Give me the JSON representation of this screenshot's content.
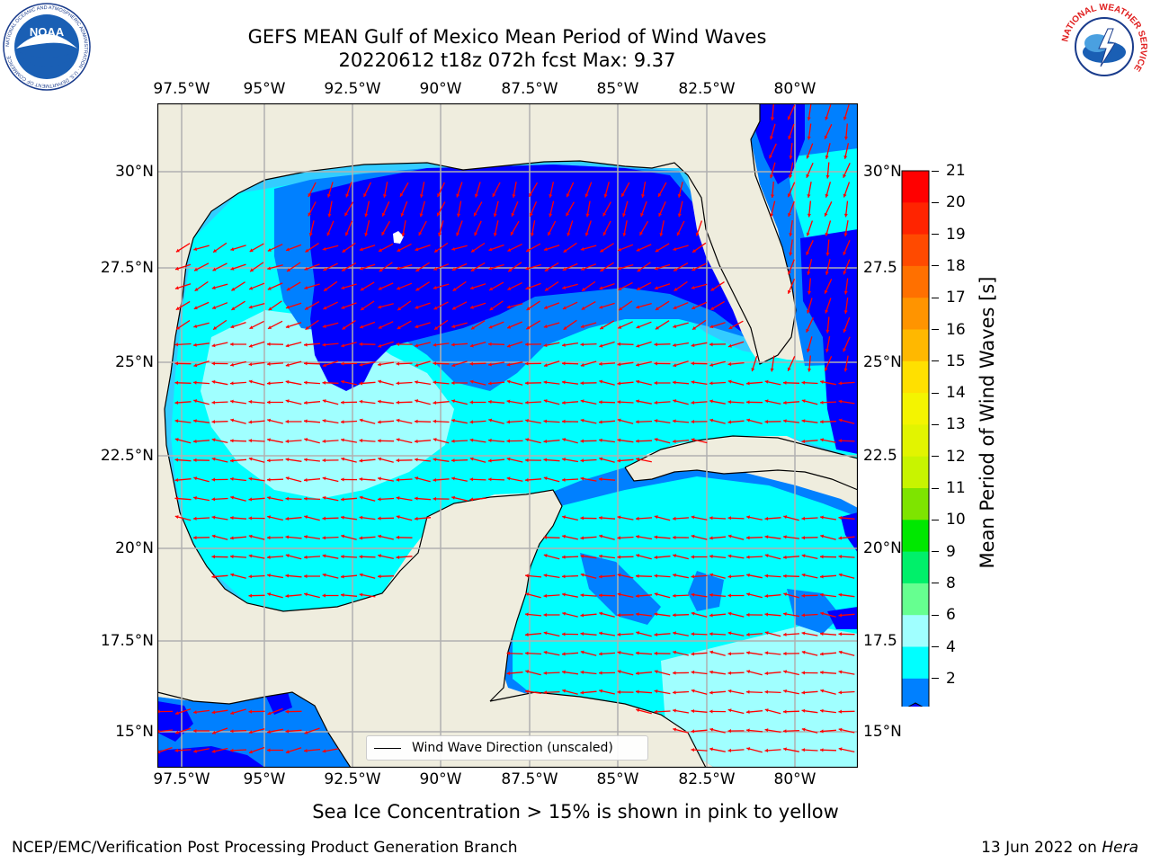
{
  "title": {
    "line1": "GEFS MEAN Gulf of Mexico Mean Period of Wind Waves",
    "line2": "20220612 t18z 072h fcst   Max: 9.37"
  },
  "map": {
    "x_ticks": [
      "97.5°W",
      "95°W",
      "92.5°W",
      "90°W",
      "87.5°W",
      "85°W",
      "82.5°W",
      "80°W"
    ],
    "y_ticks_left": [
      "30°N",
      "27.5°N",
      "25°N",
      "22.5°N",
      "20°N",
      "17.5°N",
      "15°N"
    ],
    "y_ticks_right": [
      "30°N",
      "27.5",
      "25°N",
      "22.5",
      "20°N",
      "17.5",
      "15°N"
    ],
    "legend_label": "Wind Wave Direction (unscaled)",
    "arrow_color": "#ff0000",
    "land_color": "#efedde",
    "wind_direction": "mostly westward, veering toward north in the northern gulf"
  },
  "colorbar": {
    "title": "Mean Period of Wind Waves [s]",
    "labels": [
      "21",
      "20",
      "19",
      "18",
      "17",
      "16",
      "15",
      "14",
      "13",
      "12",
      "11",
      "10",
      "9",
      "8",
      "6",
      "4",
      "2"
    ],
    "colors": [
      "#ff0000",
      "#ff2400",
      "#ff4a00",
      "#ff7000",
      "#ff9400",
      "#ffb800",
      "#ffe000",
      "#f4f400",
      "#e2f400",
      "#c8f400",
      "#7ee400",
      "#00e800",
      "#00f06a",
      "#66ff90",
      "#a0ffff",
      "#00ffff",
      "#0080ff"
    ],
    "under_color": "#0000ff"
  },
  "note": "Sea Ice Concentration > 15% is shown in pink to yellow",
  "footer": {
    "left": "NCEP/EMC/Verification Post Processing Product Generation Branch",
    "right_date": "13 Jun 2022 on ",
    "right_host": "Hera"
  },
  "logos": {
    "noaa_text": "NOAA",
    "noaa_ring_text": "NATIONAL OCEANIC AND ATMOSPHERIC ADMINISTRATION · U.S. DEPARTMENT OF COMMERCE",
    "nws_ring_text": "NATIONAL WEATHER SERVICE"
  }
}
